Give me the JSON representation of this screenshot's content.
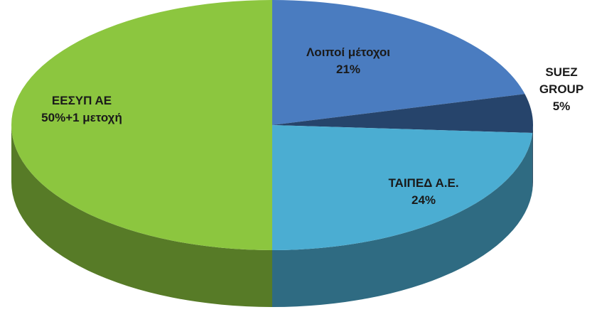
{
  "chart_data": {
    "type": "pie",
    "three_d": true,
    "categories": [
      "Λοιποί μέτοχοι",
      "SUEZ GROUP",
      "ΤΑΙΠΕΔ Α.Ε.",
      "ΕΕΣΥΠ ΑΕ"
    ],
    "values": [
      21,
      5,
      24,
      50
    ],
    "value_labels": [
      "21%",
      "5%",
      "24%",
      "50%+1 μετοχή"
    ],
    "colors": [
      "#4a7cc0",
      "#26446b",
      "#4badd2",
      "#8cc63f"
    ]
  }
}
